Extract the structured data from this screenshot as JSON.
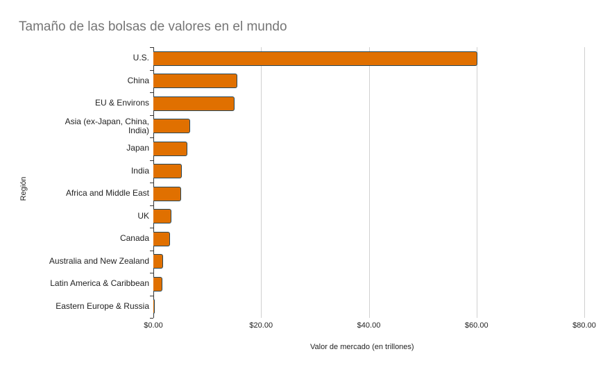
{
  "chart_data": {
    "type": "bar",
    "orientation": "horizontal",
    "title": "Tamaño de las bolsas de valores en el mundo",
    "xlabel": "Valor de mercado (en trillones)",
    "ylabel": "Región",
    "xlim": [
      0,
      80
    ],
    "x_ticks": [
      "$0.00",
      "$20.00",
      "$40.00",
      "$60.00",
      "$80.00"
    ],
    "grid": true,
    "legend": "none",
    "bar_color": "#e07000",
    "bar_border_color": "#24475a",
    "categories": [
      "U.S.",
      "China",
      "EU & Environs",
      "Asia (ex-Japan, China, India)",
      "Japan",
      "India",
      "Africa and Middle East",
      "UK",
      "Canada",
      "Australia and New Zealand",
      "Latin America & Caribbean",
      "Eastern Europe & Russia"
    ],
    "values": [
      60.1,
      15.6,
      15.1,
      6.8,
      6.3,
      5.3,
      5.2,
      3.4,
      3.1,
      1.8,
      1.7,
      0.2
    ]
  }
}
